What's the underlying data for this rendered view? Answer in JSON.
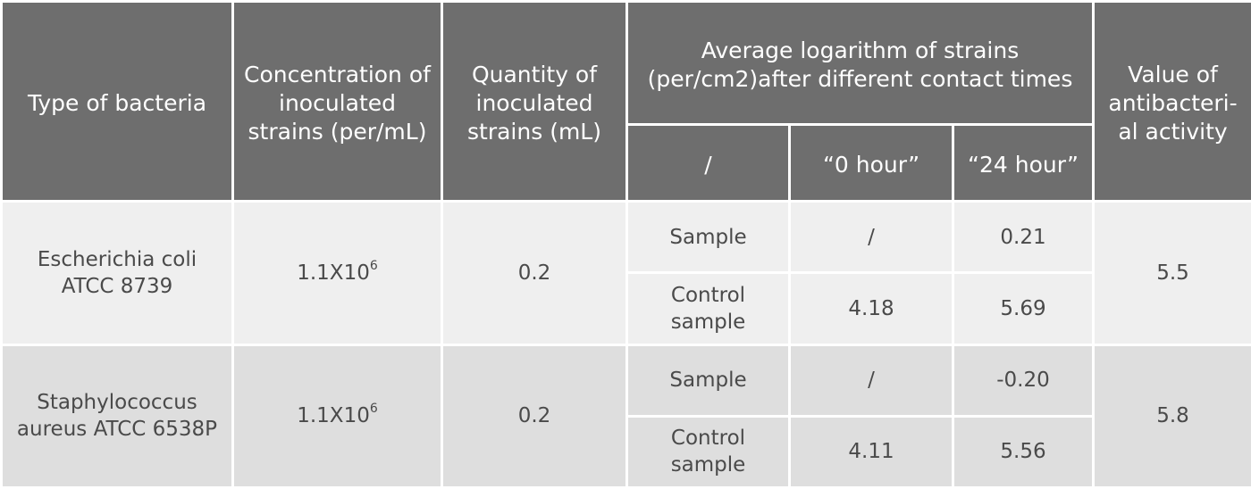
{
  "headers": {
    "type": "Type of bacteria",
    "concentration": "Concentration of inoculated strains (per/mL)",
    "quantity": "Quantity of inoculated strains (mL)",
    "average": "Average logarithm  of strains (per/cm2)after different contact times",
    "sub_slash": "/",
    "sub_0h": "“0 hour”",
    "sub_24h": "“24 hour”",
    "value": "Value of antibacteri-al activity"
  },
  "rows": [
    {
      "bacteria": "Escherichia coli ATCC 8739",
      "concentration_base": "1.1X10",
      "concentration_exp": "6",
      "quantity": "0.2",
      "sample": {
        "label": "Sample",
        "h0": "/",
        "h24": "0.21"
      },
      "control": {
        "label": "Control sample",
        "h0": "4.18",
        "h24": "5.69"
      },
      "value": "5.5"
    },
    {
      "bacteria": "Staphylococcus aureus ATCC 6538P",
      "concentration_base": "1.1X10",
      "concentration_exp": "6",
      "quantity": "0.2",
      "sample": {
        "label": "Sample",
        "h0": "/",
        "h24": "-0.20"
      },
      "control": {
        "label": "Control sample",
        "h0": "4.11",
        "h24": "5.56"
      },
      "value": "5.8"
    }
  ]
}
